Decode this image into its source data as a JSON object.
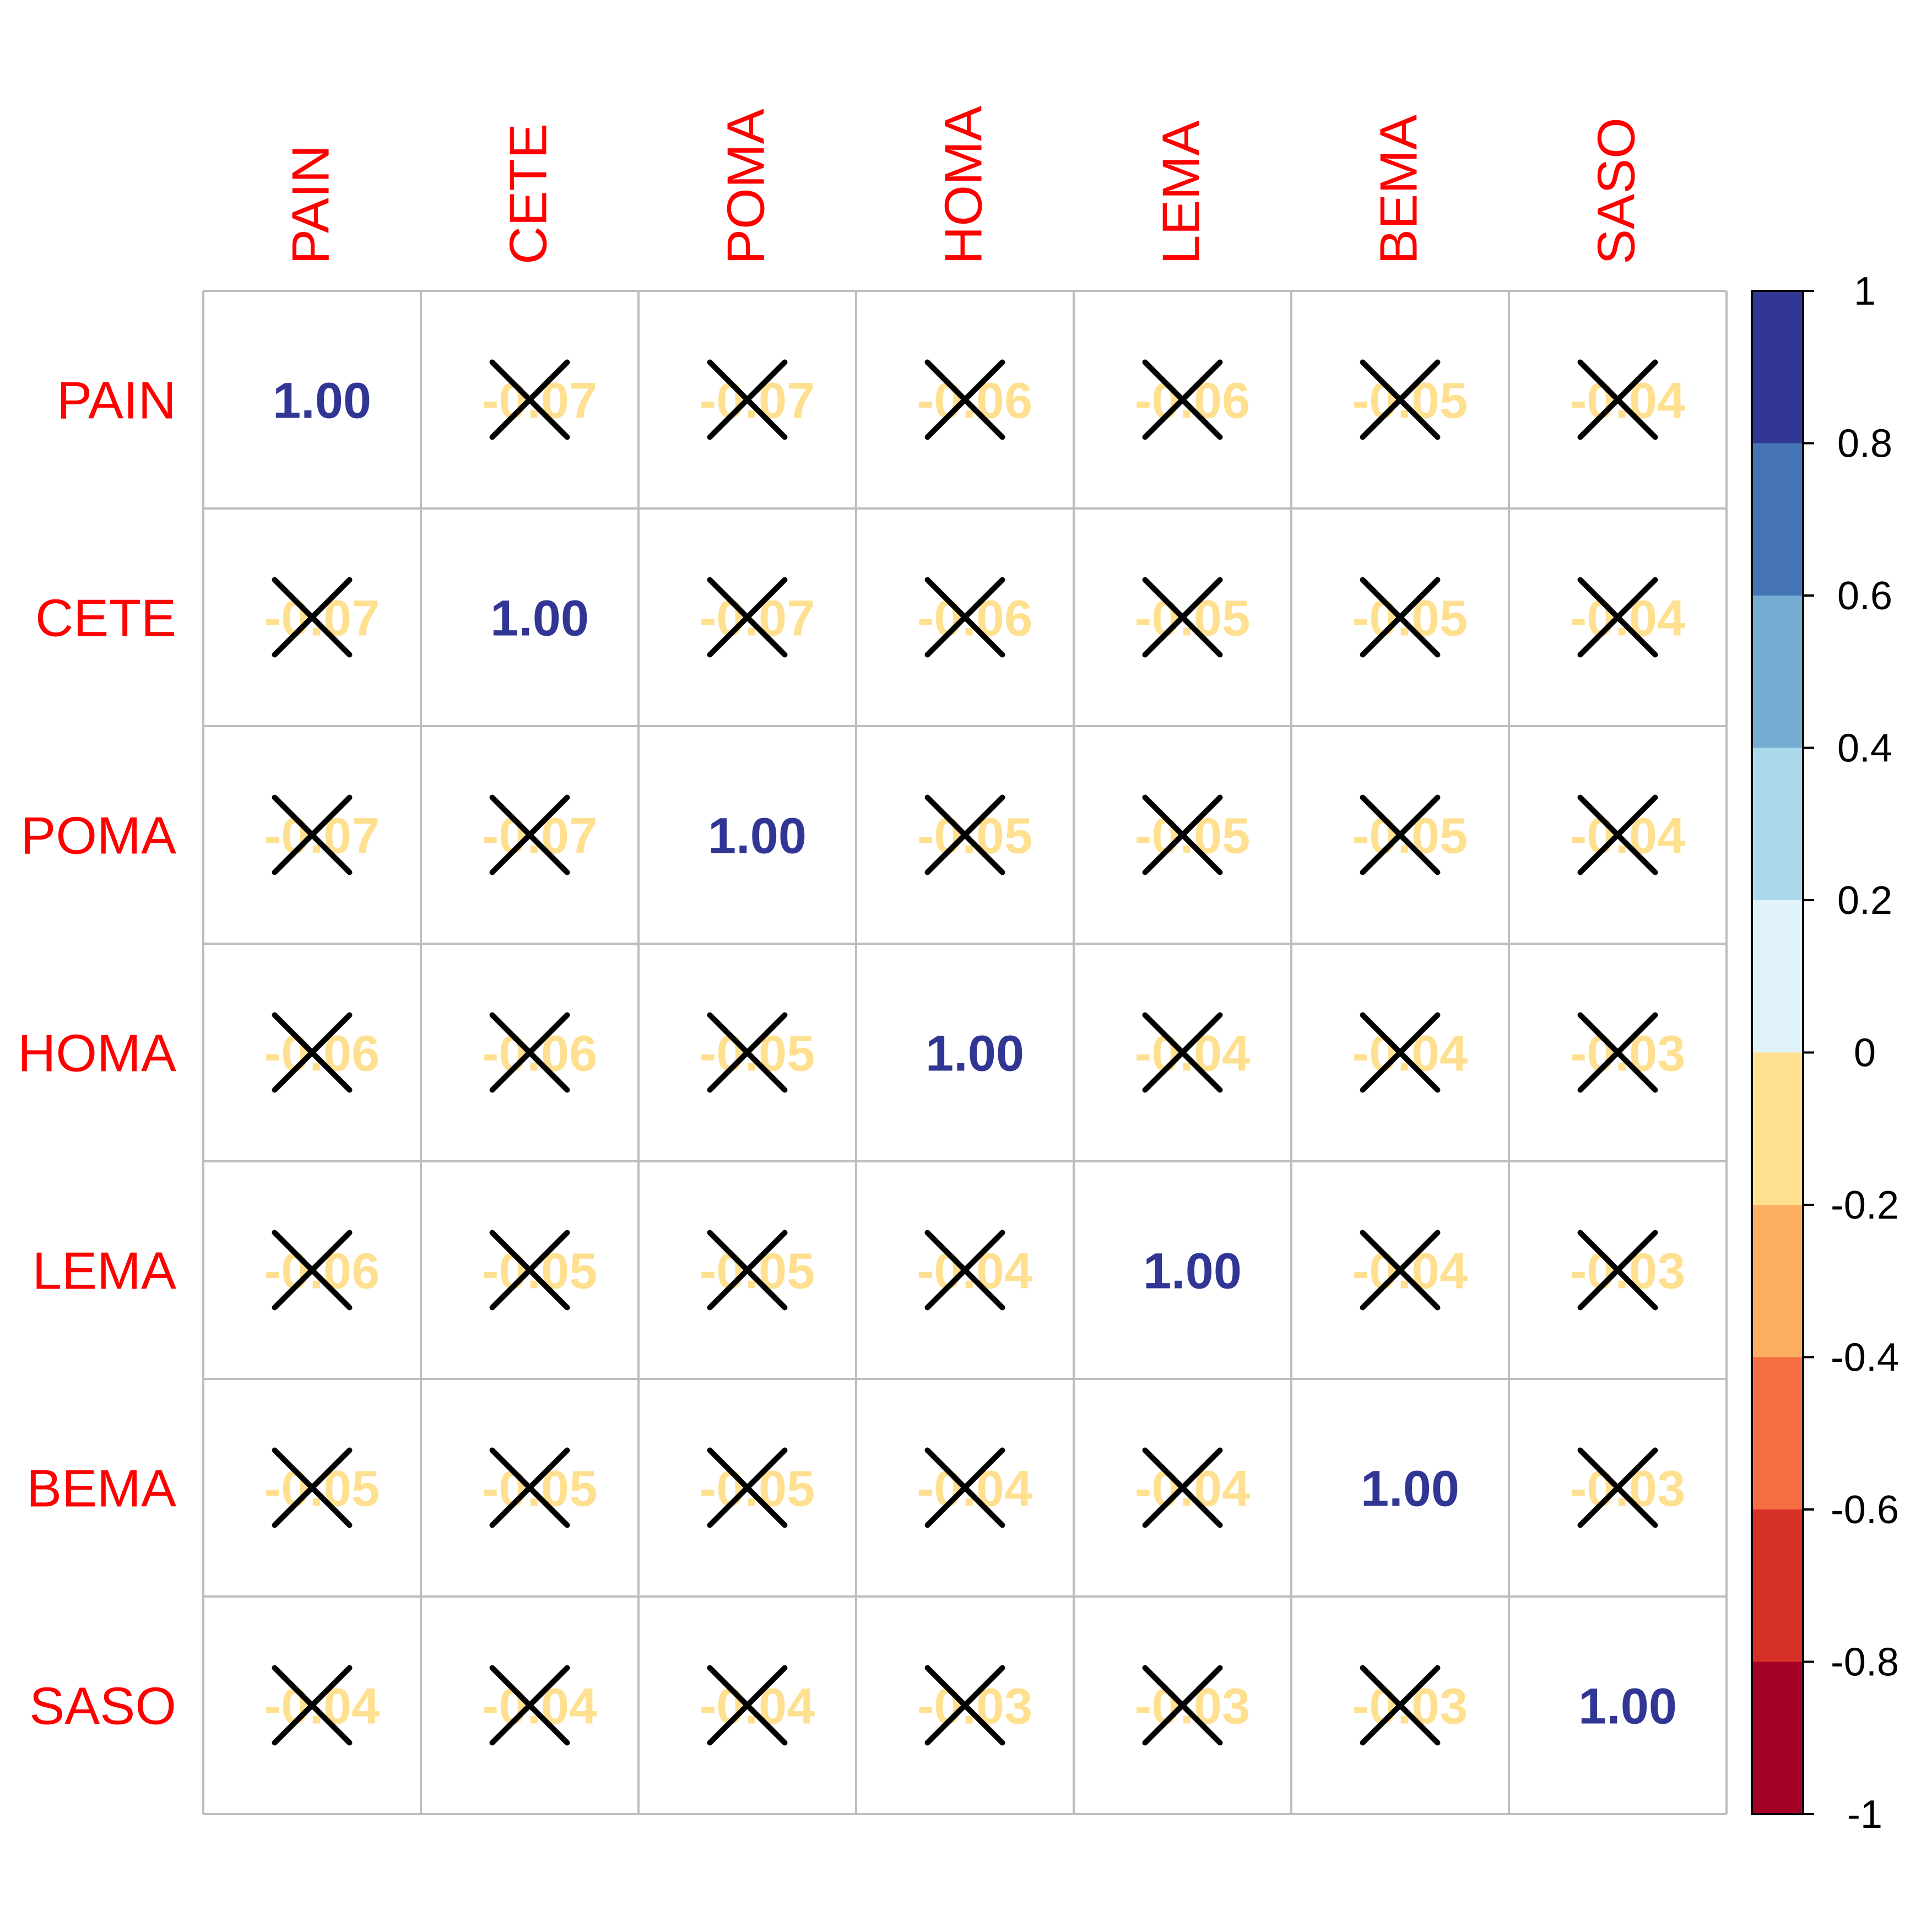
{
  "chart_data": {
    "type": "heatmap",
    "variables": [
      "PAIN",
      "CETE",
      "POMA",
      "HOMA",
      "LEMA",
      "BEMA",
      "SASO"
    ],
    "matrix": [
      [
        1.0,
        -0.07,
        -0.07,
        -0.06,
        -0.06,
        -0.05,
        -0.04
      ],
      [
        -0.07,
        1.0,
        -0.07,
        -0.06,
        -0.05,
        -0.05,
        -0.04
      ],
      [
        -0.07,
        -0.07,
        1.0,
        -0.05,
        -0.05,
        -0.05,
        -0.04
      ],
      [
        -0.06,
        -0.06,
        -0.05,
        1.0,
        -0.04,
        -0.04,
        -0.03
      ],
      [
        -0.06,
        -0.05,
        -0.05,
        -0.04,
        1.0,
        -0.04,
        -0.03
      ],
      [
        -0.05,
        -0.05,
        -0.05,
        -0.04,
        -0.04,
        1.0,
        -0.03
      ],
      [
        -0.04,
        -0.04,
        -0.04,
        -0.03,
        -0.03,
        -0.03,
        1.0
      ]
    ],
    "value_labels": [
      [
        "1.00",
        "-0.07",
        "-0.07",
        "-0.06",
        "-0.06",
        "-0.05",
        "-0.04"
      ],
      [
        "-0.07",
        "1.00",
        "-0.07",
        "-0.06",
        "-0.05",
        "-0.05",
        "-0.04"
      ],
      [
        "-0.07",
        "-0.07",
        "1.00",
        "-0.05",
        "-0.05",
        "-0.05",
        "-0.04"
      ],
      [
        "-0.06",
        "-0.06",
        "-0.05",
        "1.00",
        "-0.04",
        "-0.04",
        "-0.03"
      ],
      [
        "-0.06",
        "-0.05",
        "-0.05",
        "-0.04",
        "1.00",
        "-0.04",
        "-0.03"
      ],
      [
        "-0.05",
        "-0.05",
        "-0.05",
        "-0.04",
        "-0.04",
        "1.00",
        "-0.03"
      ],
      [
        "-0.04",
        "-0.04",
        "-0.04",
        "-0.03",
        "-0.03",
        "-0.03",
        "1.00"
      ]
    ],
    "crossed_out": [
      [
        false,
        true,
        true,
        true,
        true,
        true,
        true
      ],
      [
        true,
        false,
        true,
        true,
        true,
        true,
        true
      ],
      [
        true,
        true,
        false,
        true,
        true,
        true,
        true
      ],
      [
        true,
        true,
        true,
        false,
        true,
        true,
        true
      ],
      [
        true,
        true,
        true,
        true,
        false,
        true,
        true
      ],
      [
        true,
        true,
        true,
        true,
        true,
        false,
        true
      ],
      [
        true,
        true,
        true,
        true,
        true,
        true,
        false
      ]
    ],
    "color_scale": {
      "range": [
        -1,
        1
      ],
      "ticks": [
        "1",
        "0.8",
        "0.6",
        "0.4",
        "0.2",
        "0",
        "-0.2",
        "-0.4",
        "-0.6",
        "-0.8",
        "-1"
      ],
      "bins": [
        "#313695",
        "#4575B4",
        "#74ADD1",
        "#ABD9E9",
        "#E0F3F8",
        "#FEE090",
        "#FDAE61",
        "#F46D43",
        "#D73027",
        "#A50026"
      ]
    },
    "label_color": "#FF0000",
    "grid_color": "#BEBEBE",
    "cross_color": "#000000"
  }
}
